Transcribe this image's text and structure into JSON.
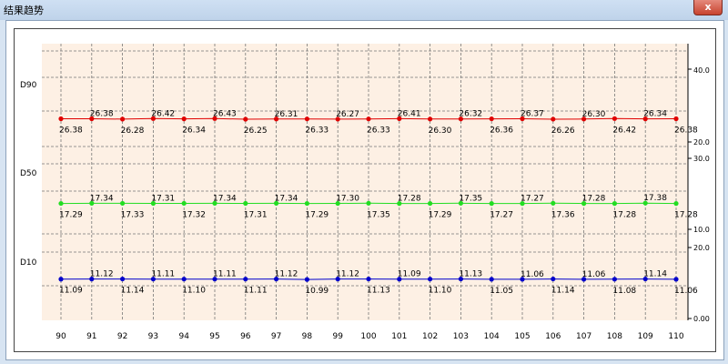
{
  "window": {
    "title": "结果趋势",
    "close_label": "x"
  },
  "chart_data": {
    "type": "line",
    "x": [
      90,
      91,
      92,
      93,
      94,
      95,
      96,
      97,
      98,
      99,
      100,
      101,
      102,
      103,
      104,
      105,
      106,
      107,
      108,
      109,
      110
    ],
    "grid": true,
    "panels": [
      {
        "ylabel": "D90",
        "color": "#e00000",
        "ylim": [
          20.0,
          40.0
        ],
        "ytick_labels": [
          "40.0",
          "20.0"
        ],
        "values": [
          26.38,
          26.38,
          26.28,
          26.42,
          26.34,
          26.43,
          26.25,
          26.31,
          26.33,
          26.27,
          26.33,
          26.41,
          26.3,
          26.32,
          26.36,
          26.37,
          26.26,
          26.3,
          26.42,
          26.34,
          26.38
        ]
      },
      {
        "ylabel": "D50",
        "color": "#22dd22",
        "ylim": [
          10.0,
          30.0
        ],
        "ytick_labels": [
          "30.0",
          "10.0"
        ],
        "values": [
          17.29,
          17.34,
          17.33,
          17.31,
          17.32,
          17.34,
          17.31,
          17.34,
          17.29,
          17.3,
          17.35,
          17.28,
          17.29,
          17.35,
          17.27,
          17.27,
          17.36,
          17.28,
          17.28,
          17.38,
          17.28
        ]
      },
      {
        "ylabel": "D10",
        "color": "#0000cc",
        "ylim": [
          0.0,
          20.0
        ],
        "ytick_labels": [
          "20.0",
          "0.00"
        ],
        "values": [
          11.09,
          11.12,
          11.14,
          11.11,
          11.1,
          11.11,
          11.11,
          11.12,
          10.99,
          11.12,
          11.13,
          11.09,
          11.1,
          11.13,
          11.05,
          11.06,
          11.14,
          11.06,
          11.08,
          11.14,
          11.06
        ]
      }
    ]
  }
}
